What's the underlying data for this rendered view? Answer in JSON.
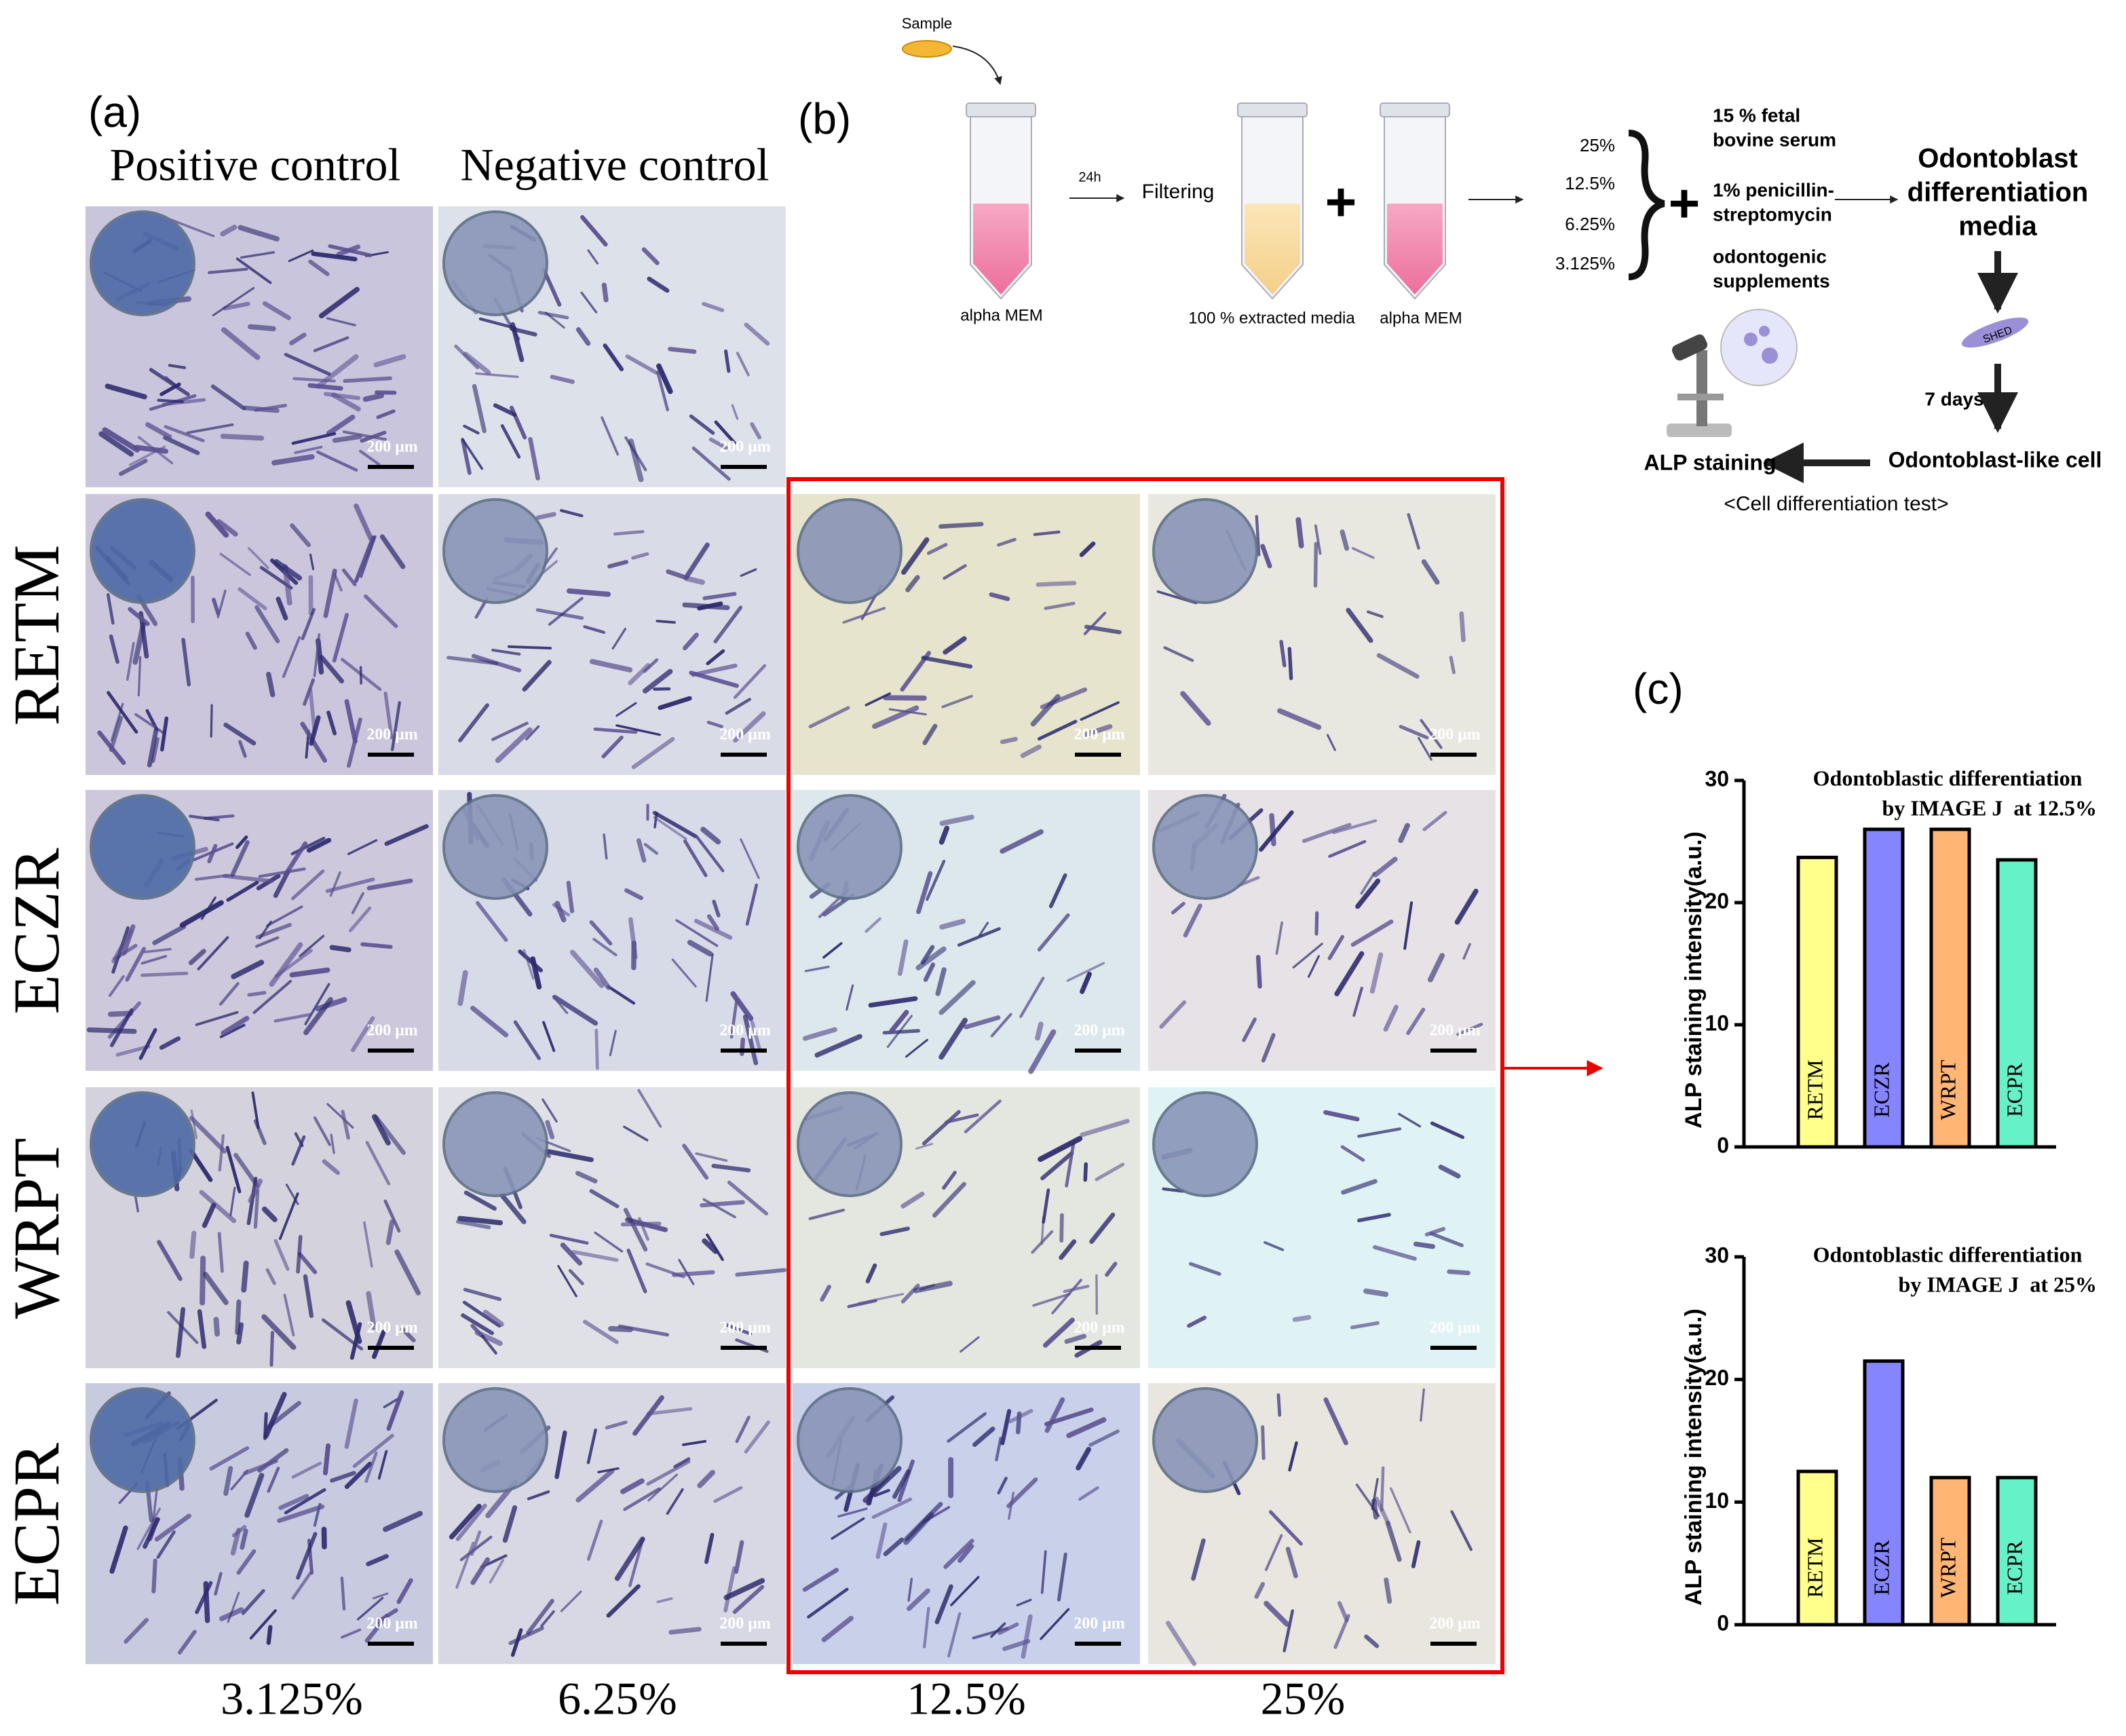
{
  "panel_a": {
    "label": "(a)",
    "column_headers": [
      "Positive control",
      "Negative control"
    ],
    "row_labels": [
      "RETM",
      "ECZR",
      "WRPT",
      "ECPR"
    ],
    "column_footers": [
      "3.125%",
      "6.25%",
      "12.5%",
      "25%"
    ],
    "scale_bars": [
      "200 μm",
      "200 μm",
      "200 μm",
      "200 μm",
      "200 μm",
      "200 μm",
      "200 μm",
      "200 μm",
      "200 μm",
      "200 μm",
      "200 μm",
      "200 μm",
      "200 μm",
      "200 μm",
      "200 μm",
      "200 μm",
      "200 μm",
      "200 μm"
    ]
  },
  "panel_b": {
    "label": "(b)",
    "sample": "Sample",
    "tube_1": "alpha MEM",
    "time": "24h",
    "filtering": "Filtering",
    "tube_2": "100 % extracted media",
    "tube_3": "alpha MEM",
    "concentrations": [
      "25%",
      "12.5%",
      "6.25%",
      "3.125%"
    ],
    "supplements": [
      [
        "15 % fetal",
        "bovine serum"
      ],
      [
        "1% penicillin-",
        "streptomycin"
      ],
      [
        "odontogenic",
        "supplements"
      ]
    ],
    "media": [
      "Odontoblast",
      "differentiation",
      "media"
    ],
    "cell": "SHED",
    "duration": "7 days",
    "result": "Odontoblast-like cell",
    "staining": "ALP staining",
    "test": "<Cell differentiation test>"
  },
  "panel_c": {
    "label": "(c)"
  },
  "chart_data": [
    {
      "type": "bar",
      "title": "Odontoblastic differentiation",
      "subtitle": "by IMAGE J  at 12.5%",
      "y_label": "ALP staining intensity(a.u.)",
      "categories": [
        "RETM",
        "ECZR",
        "WRPT",
        "ECPR"
      ],
      "values": [
        23.7,
        26.0,
        26.0,
        23.5
      ],
      "colors": [
        "#ffff8c",
        "#8585ff",
        "#ffb574",
        "#66f2c8"
      ],
      "ylim": [
        0,
        30
      ],
      "yticks": [
        0,
        10,
        20,
        30
      ]
    },
    {
      "type": "bar",
      "title": "Odontoblastic differentiation",
      "subtitle": "by IMAGE J  at 25%",
      "y_label": "ALP staining intensity(a.u.)",
      "categories": [
        "RETM",
        "ECZR",
        "WRPT",
        "ECPR"
      ],
      "values": [
        12.5,
        21.5,
        12.0,
        12.0
      ],
      "colors": [
        "#ffff8c",
        "#8585ff",
        "#ffb574",
        "#66f2c8"
      ],
      "ylim": [
        0,
        30
      ],
      "yticks": [
        0,
        10,
        20,
        30
      ]
    }
  ]
}
